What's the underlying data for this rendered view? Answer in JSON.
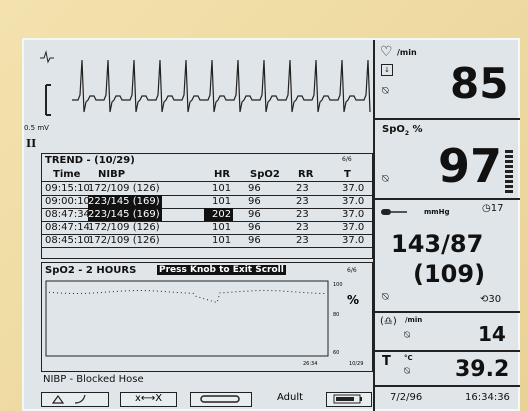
{
  "ecg": {
    "scale": "0.5 mV",
    "lead": "II"
  },
  "trend": {
    "title": "TREND - (10/29)",
    "page": "6/6",
    "columns": [
      "Time",
      "NIBP",
      "HR",
      "SpO2",
      "RR",
      "T"
    ],
    "rows": [
      [
        "09:15:10",
        "172/109 (126)",
        "101",
        "96",
        "23",
        "37.0"
      ],
      [
        "09:00:10",
        "223/145 (169)",
        "101",
        "96",
        "23",
        "37.0"
      ],
      [
        "08:47:34",
        "223/145 (169)",
        "202",
        "96",
        "23",
        "37.0"
      ],
      [
        "08:47:14",
        "172/109 (126)",
        "101",
        "96",
        "23",
        "37.0"
      ],
      [
        "08:45:10",
        "172/109 (126)",
        "101",
        "96",
        "23",
        "37.0"
      ]
    ]
  },
  "spo2_trend": {
    "title": "SpO2 - 2 HOURS",
    "message": "Press Knob to Exit Scroll",
    "page": "6/6",
    "unit": "%",
    "scale": [
      "100",
      "80",
      "60"
    ],
    "time_labels": [
      "26:34",
      "10/29"
    ]
  },
  "status": "NIBP - Blocked Hose",
  "buttons": {
    "swap": "x⟷X",
    "mode": "Adult"
  },
  "vitals": {
    "hr": {
      "unit": "/min",
      "value": "85"
    },
    "spo2": {
      "label": "SpO",
      "sub": "2",
      "unit": "%",
      "value": "97"
    },
    "nibp": {
      "unit": "mmHg",
      "interval": "17",
      "pressure": "143/87",
      "mean": "(109)",
      "cycle": "30"
    },
    "resp": {
      "unit": "/min",
      "value": "14"
    },
    "temp": {
      "label": "T",
      "unit": "°C",
      "value": "39.2"
    }
  },
  "date": "7/2/96",
  "time": "16:34:36"
}
